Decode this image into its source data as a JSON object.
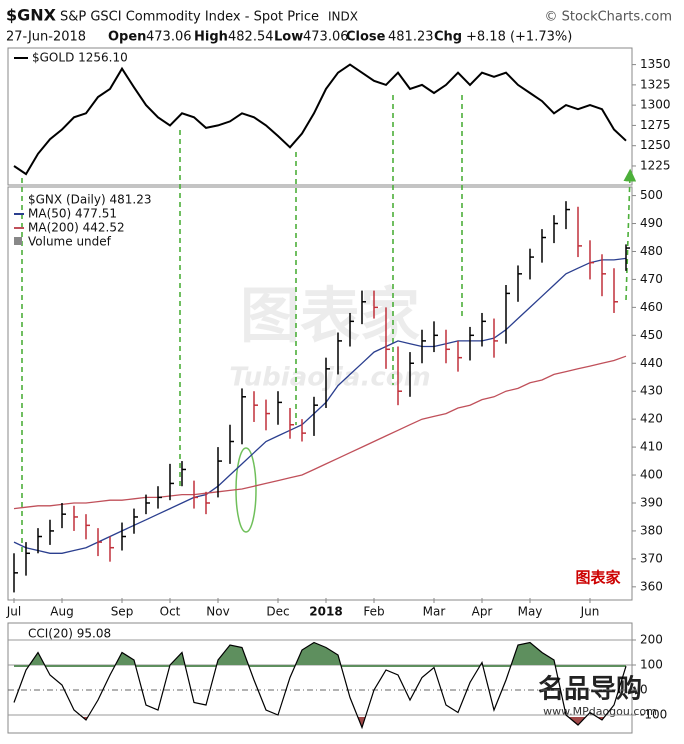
{
  "header": {
    "symbol": "$GNX",
    "name": "S&P GSCI Commodity Index - Spot Price",
    "exchange": "INDX",
    "source": "© StockCharts.com",
    "date": "27-Jun-2018",
    "open_label": "Open",
    "open": "473.06",
    "high_label": "High",
    "high": "482.54",
    "low_label": "Low",
    "low": "473.06",
    "close_label": "Close",
    "close": "481.23",
    "chg_label": "Chg",
    "chg": "+8.18 (+1.73%)"
  },
  "chart_data": [
    {
      "type": "line",
      "legend": "$GOLD 1256.10",
      "color": "#000000",
      "values": [
        1225,
        1215,
        1240,
        1258,
        1270,
        1285,
        1290,
        1310,
        1320,
        1345,
        1322,
        1300,
        1285,
        1275,
        1290,
        1285,
        1272,
        1275,
        1280,
        1290,
        1285,
        1275,
        1262,
        1248,
        1265,
        1290,
        1320,
        1340,
        1350,
        1340,
        1330,
        1325,
        1340,
        1320,
        1325,
        1315,
        1325,
        1340,
        1325,
        1340,
        1335,
        1340,
        1325,
        1315,
        1305,
        1290,
        1300,
        1295,
        1300,
        1295,
        1270,
        1256.1
      ],
      "ylim": [
        1204,
        1368
      ],
      "yticks": [
        1225,
        1250,
        1275,
        1300,
        1325,
        1350
      ]
    },
    {
      "type": "ohlc",
      "legend": "$GNX (Daily) 481.23",
      "up_color": "#000000",
      "down_color": "#c0303a",
      "categories": [
        "Jul",
        null,
        null,
        null,
        "Aug",
        null,
        null,
        null,
        null,
        "Sep",
        null,
        null,
        null,
        "Oct",
        null,
        null,
        null,
        "Nov",
        null,
        null,
        null,
        null,
        "Dec",
        null,
        null,
        null,
        "2018",
        null,
        null,
        null,
        "Feb",
        null,
        null,
        null,
        null,
        "Mar",
        null,
        null,
        null,
        "Apr",
        null,
        null,
        null,
        "May",
        null,
        null,
        null,
        null,
        "Jun",
        null,
        null,
        null
      ],
      "high": [
        372,
        376,
        381,
        384,
        390,
        389,
        386,
        381,
        378,
        383,
        388,
        393,
        396,
        404,
        405,
        398,
        394,
        410,
        418,
        431,
        430,
        427,
        430,
        424,
        420,
        428,
        442,
        451,
        458,
        466,
        466,
        460,
        446,
        444,
        452,
        455,
        452,
        448,
        453,
        458,
        456,
        468,
        475,
        481,
        488,
        493,
        498,
        496,
        484,
        479,
        474,
        482.54
      ],
      "low": [
        358,
        364,
        372,
        375,
        381,
        380,
        377,
        371,
        369,
        373,
        379,
        386,
        388,
        391,
        396,
        388,
        386,
        392,
        404,
        411,
        419,
        416,
        418,
        413,
        412,
        414,
        424,
        436,
        446,
        454,
        456,
        438,
        425,
        428,
        440,
        444,
        440,
        437,
        441,
        446,
        442,
        447,
        462,
        470,
        476,
        483,
        488,
        478,
        470,
        464,
        458,
        473.06
      ],
      "close": [
        365,
        372,
        378,
        380,
        386,
        385,
        382,
        376,
        374,
        378,
        385,
        390,
        392,
        397,
        402,
        392,
        390,
        405,
        412,
        428,
        425,
        422,
        426,
        418,
        415,
        425,
        438,
        448,
        455,
        462,
        460,
        445,
        430,
        440,
        448,
        450,
        445,
        442,
        450,
        455,
        448,
        465,
        472,
        478,
        485,
        490,
        495,
        482,
        476,
        472,
        462,
        481.23
      ],
      "series": [
        {
          "name": "MA(50) 477.51",
          "color": "#2b3f8f",
          "values": [
            376,
            374,
            373,
            372,
            372,
            373,
            374,
            376,
            378,
            380,
            382,
            384,
            386,
            388,
            390,
            392,
            393,
            396,
            400,
            404,
            408,
            412,
            414,
            416,
            418,
            422,
            426,
            432,
            436,
            440,
            444,
            446,
            448,
            447,
            446,
            446,
            447,
            448,
            448,
            448,
            449,
            452,
            456,
            460,
            464,
            468,
            472,
            474,
            476,
            477,
            477,
            477.51
          ]
        },
        {
          "name": "MA(200) 442.52",
          "color": "#c0505a",
          "values": [
            388,
            388.5,
            389,
            389,
            389.5,
            390,
            390,
            390.5,
            391,
            391,
            391.5,
            392,
            392,
            392.5,
            393,
            393,
            393.5,
            394,
            394.5,
            395,
            396,
            397,
            398,
            399,
            400,
            402,
            404,
            406,
            408,
            410,
            412,
            414,
            416,
            418,
            420,
            421,
            422,
            424,
            425,
            427,
            428,
            430,
            431,
            433,
            434,
            436,
            437,
            438,
            439,
            440,
            441,
            442.52
          ]
        }
      ],
      "volume_legend": "Volume undef",
      "ylim": [
        356,
        502
      ],
      "yticks": [
        360,
        370,
        380,
        390,
        400,
        410,
        420,
        430,
        440,
        450,
        460,
        470,
        480,
        490,
        500
      ]
    },
    {
      "type": "cci",
      "legend": "CCI(20) 95.08",
      "color": "#000000",
      "above_color": "#5e8f5e",
      "below_color": "#a04848",
      "values": [
        -50,
        80,
        150,
        60,
        20,
        -80,
        -120,
        -40,
        60,
        150,
        120,
        -60,
        -80,
        100,
        150,
        -50,
        -60,
        120,
        180,
        170,
        40,
        -80,
        -100,
        50,
        160,
        190,
        170,
        140,
        -30,
        -150,
        0,
        80,
        60,
        -40,
        50,
        90,
        -60,
        -90,
        30,
        110,
        -80,
        40,
        180,
        190,
        150,
        120,
        -100,
        -140,
        -90,
        -120,
        -60,
        95.08
      ],
      "ylim": [
        -160,
        260
      ],
      "yticks": [
        -100,
        0,
        100,
        200
      ]
    }
  ],
  "watermarks": [
    "图表家",
    "Tubiaojia.com",
    "图表家",
    "名品导购",
    "www.MPdaogou.com"
  ]
}
